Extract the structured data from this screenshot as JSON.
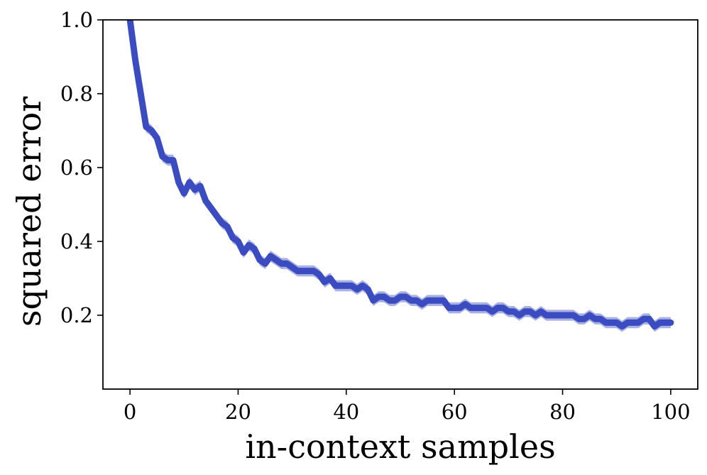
{
  "chart_data": {
    "type": "line",
    "xlabel": "in-context samples",
    "ylabel": "squared error",
    "xlim": [
      -5,
      105
    ],
    "ylim": [
      0.0,
      1.0
    ],
    "x_ticks": [
      0,
      20,
      40,
      60,
      80,
      100
    ],
    "y_ticks": [
      0.2,
      0.4,
      0.6,
      0.8,
      1.0
    ],
    "x_tick_labels": [
      "0",
      "20",
      "40",
      "60",
      "80",
      "100"
    ],
    "y_tick_labels": [
      "0.2",
      "0.4",
      "0.6",
      "0.8",
      "1.0"
    ],
    "grid": false,
    "legend": "none",
    "colors": {
      "line": "#3b4cc0",
      "band": "#8c96d9"
    },
    "series": [
      {
        "x": [
          0,
          1,
          2,
          3,
          4,
          5,
          6,
          7,
          8,
          9,
          10,
          11,
          12,
          13,
          14,
          15,
          16,
          17,
          18,
          19,
          20,
          21,
          22,
          23,
          24,
          25,
          26,
          27,
          28,
          29,
          30,
          31,
          32,
          33,
          34,
          35,
          36,
          37,
          38,
          39,
          40,
          41,
          42,
          43,
          44,
          45,
          46,
          47,
          48,
          49,
          50,
          51,
          52,
          53,
          54,
          55,
          56,
          57,
          58,
          59,
          60,
          61,
          62,
          63,
          64,
          65,
          66,
          67,
          68,
          69,
          70,
          71,
          72,
          73,
          74,
          75,
          76,
          77,
          78,
          79,
          80,
          81,
          82,
          83,
          84,
          85,
          86,
          87,
          88,
          89,
          90,
          91,
          92,
          93,
          94,
          95,
          96,
          97,
          98,
          99,
          100
        ],
        "y": [
          1.0,
          0.89,
          0.8,
          0.71,
          0.7,
          0.68,
          0.63,
          0.62,
          0.62,
          0.56,
          0.53,
          0.56,
          0.54,
          0.55,
          0.51,
          0.49,
          0.47,
          0.45,
          0.44,
          0.41,
          0.4,
          0.37,
          0.39,
          0.38,
          0.35,
          0.34,
          0.36,
          0.35,
          0.34,
          0.34,
          0.33,
          0.32,
          0.32,
          0.32,
          0.32,
          0.31,
          0.29,
          0.3,
          0.28,
          0.28,
          0.28,
          0.28,
          0.27,
          0.28,
          0.27,
          0.24,
          0.25,
          0.25,
          0.24,
          0.24,
          0.25,
          0.25,
          0.24,
          0.24,
          0.23,
          0.24,
          0.24,
          0.24,
          0.24,
          0.22,
          0.22,
          0.22,
          0.23,
          0.22,
          0.22,
          0.22,
          0.22,
          0.21,
          0.22,
          0.22,
          0.21,
          0.21,
          0.2,
          0.21,
          0.21,
          0.2,
          0.21,
          0.2,
          0.2,
          0.2,
          0.2,
          0.2,
          0.2,
          0.19,
          0.19,
          0.2,
          0.19,
          0.19,
          0.18,
          0.18,
          0.18,
          0.17,
          0.18,
          0.18,
          0.18,
          0.19,
          0.19,
          0.17,
          0.18,
          0.18,
          0.18
        ],
        "band": 0.015
      }
    ]
  }
}
